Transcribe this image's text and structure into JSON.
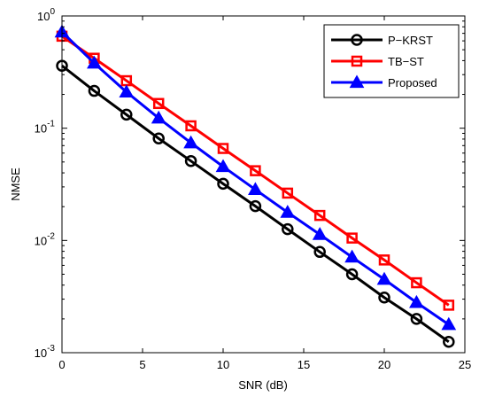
{
  "chart_data": {
    "type": "line",
    "xlabel": "SNR (dB)",
    "ylabel": "NMSE",
    "xlim": [
      0,
      25
    ],
    "ylim": [
      0.001,
      1
    ],
    "yscale": "log",
    "grid": false,
    "legend_position": "top-right",
    "x_ticks": [
      "0",
      "5",
      "10",
      "15",
      "20",
      "25"
    ],
    "y_ticks": [
      {
        "base": "10",
        "exp": "0"
      },
      {
        "base": "10",
        "exp": "-1"
      },
      {
        "base": "10",
        "exp": "-2"
      },
      {
        "base": "10",
        "exp": "-3"
      }
    ],
    "x": [
      0,
      2,
      4,
      6,
      8,
      10,
      12,
      14,
      16,
      18,
      20,
      22,
      24
    ],
    "series": [
      {
        "name": "P−KRST",
        "color": "#000000",
        "marker": "circle",
        "values": [
          0.36,
          0.215,
          0.132,
          0.081,
          0.051,
          0.032,
          0.0202,
          0.0126,
          0.0079,
          0.005,
          0.0031,
          0.002,
          0.00125
        ]
      },
      {
        "name": "TB−ST",
        "color": "#ff0000",
        "marker": "square",
        "values": [
          0.66,
          0.42,
          0.265,
          0.166,
          0.105,
          0.066,
          0.0418,
          0.0264,
          0.0167,
          0.0105,
          0.0067,
          0.0042,
          0.00265
        ]
      },
      {
        "name": "Proposed",
        "color": "#0000ff",
        "marker": "triangle",
        "values": [
          0.72,
          0.38,
          0.21,
          0.123,
          0.074,
          0.0455,
          0.0284,
          0.0178,
          0.0113,
          0.0071,
          0.0045,
          0.0028,
          0.00178
        ]
      }
    ]
  }
}
